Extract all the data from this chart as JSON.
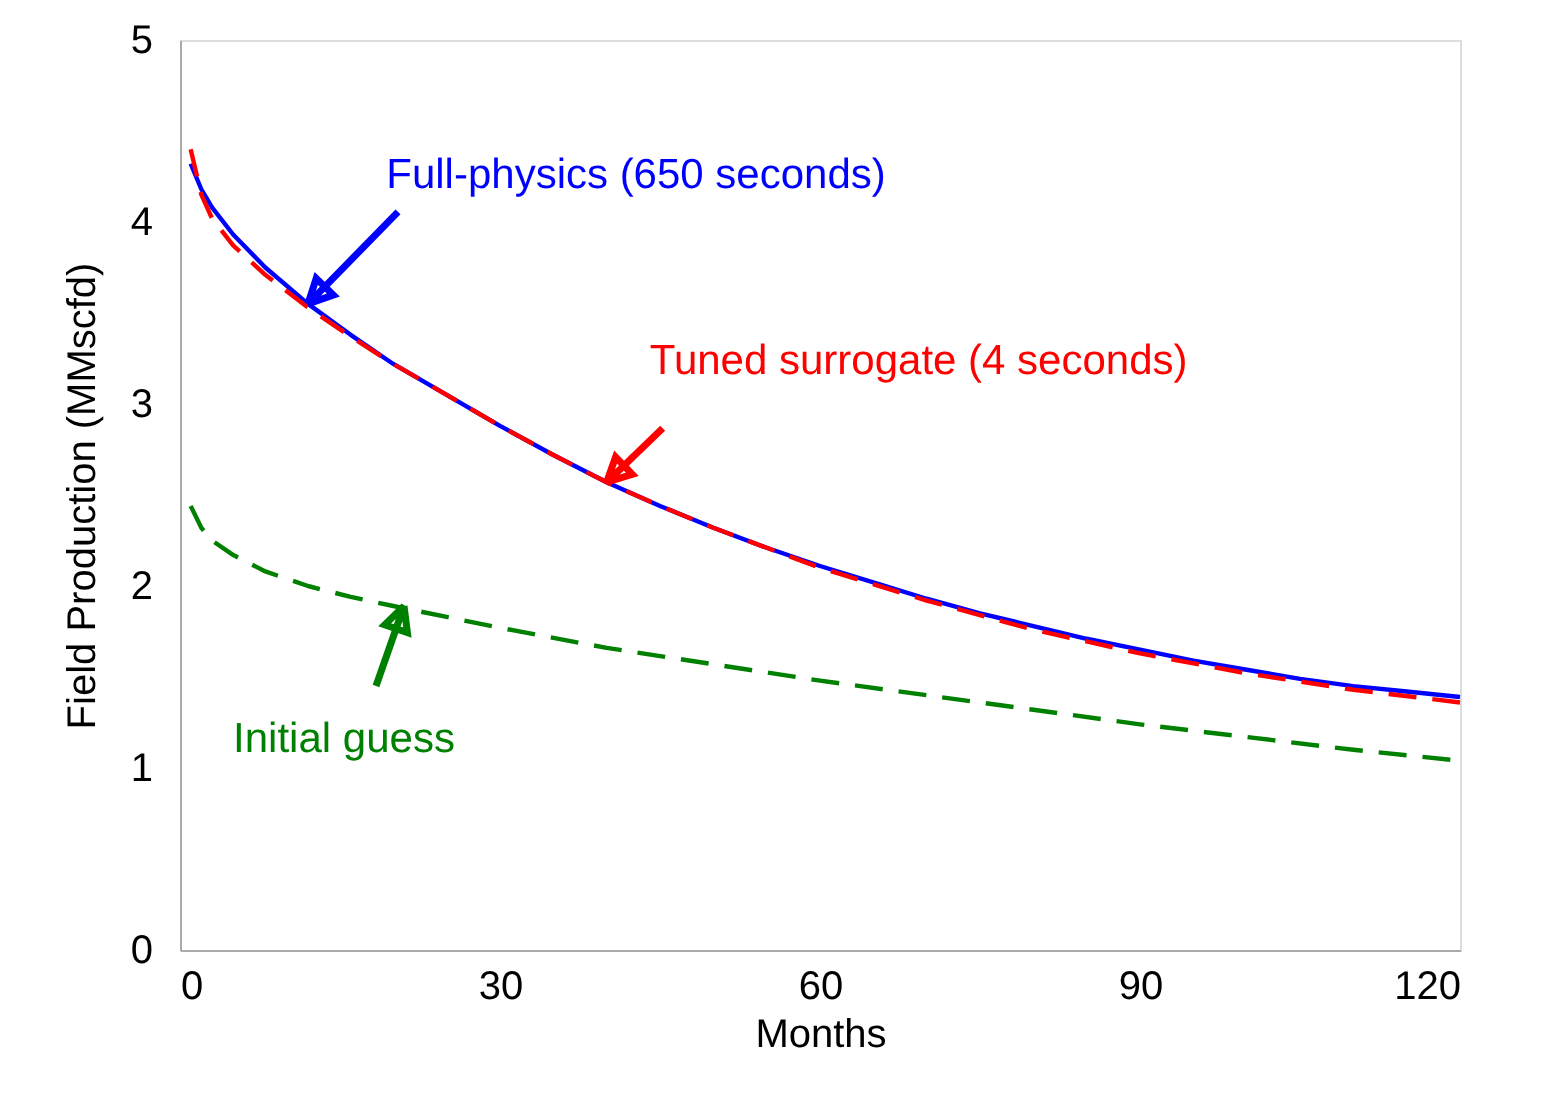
{
  "chart_data": {
    "type": "line",
    "xlabel": "Months",
    "ylabel": "Field Production (MMscfd)",
    "xlim": [
      0,
      120
    ],
    "xticks": [
      0,
      30,
      60,
      90,
      120
    ],
    "ylim": [
      0,
      5
    ],
    "yticks": [
      0,
      1,
      2,
      3,
      4,
      5
    ],
    "grid": false,
    "marker": "none",
    "series": [
      {
        "color": "#0000ff",
        "line_style": "solid",
        "x": [
          1,
          2,
          3,
          5,
          8,
          12,
          16,
          20,
          25,
          30,
          35,
          40,
          45,
          50,
          55,
          60,
          65,
          70,
          75,
          80,
          85,
          90,
          95,
          100,
          105,
          110,
          115,
          120
        ],
        "values": [
          4.32,
          4.18,
          4.08,
          3.93,
          3.75,
          3.55,
          3.38,
          3.22,
          3.05,
          2.88,
          2.72,
          2.57,
          2.44,
          2.32,
          2.21,
          2.11,
          2.02,
          1.93,
          1.85,
          1.78,
          1.71,
          1.65,
          1.59,
          1.54,
          1.49,
          1.45,
          1.42,
          1.39
        ]
      },
      {
        "color": "#ff0000",
        "line_style": "dashed",
        "x": [
          1,
          2,
          3,
          5,
          8,
          12,
          16,
          20,
          25,
          30,
          35,
          40,
          45,
          50,
          55,
          60,
          70,
          80,
          90,
          100,
          110,
          120
        ],
        "values": [
          4.4,
          4.15,
          4.02,
          3.87,
          3.71,
          3.53,
          3.37,
          3.22,
          3.05,
          2.88,
          2.72,
          2.57,
          2.44,
          2.32,
          2.21,
          2.1,
          1.92,
          1.76,
          1.63,
          1.52,
          1.43,
          1.36
        ]
      },
      {
        "color": "#008000",
        "line_style": "dashed",
        "x": [
          1,
          2,
          3,
          5,
          8,
          12,
          16,
          20,
          25,
          30,
          40,
          50,
          60,
          70,
          80,
          90,
          100,
          110,
          120
        ],
        "values": [
          2.44,
          2.32,
          2.25,
          2.17,
          2.08,
          2.0,
          1.94,
          1.89,
          1.83,
          1.77,
          1.66,
          1.57,
          1.48,
          1.4,
          1.32,
          1.24,
          1.17,
          1.1,
          1.04
        ]
      }
    ],
    "annotations": [
      {
        "text": "Full-physics (650 seconds)",
        "x": 12,
        "y": 3.55
      },
      {
        "text": "Tuned surrogate (4 seconds)",
        "x": 40,
        "y": 2.57
      },
      {
        "text": "Initial guess",
        "x": 21,
        "y": 1.89
      }
    ]
  }
}
